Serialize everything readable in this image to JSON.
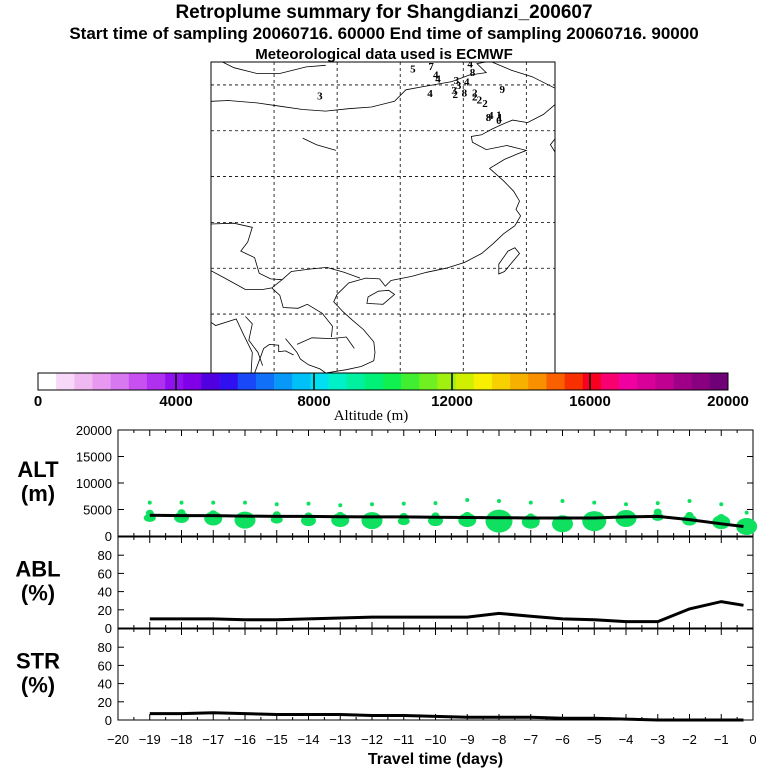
{
  "header": {
    "title": "Retroplume summary for Shangdianzi_200607",
    "subtitle": "Start time of sampling 20060716. 60000     End time of sampling 20060716. 90000",
    "met_note": "Meteorological data used is ECMWF"
  },
  "colorbar": {
    "colors": [
      "#ffffff",
      "#f8d8f8",
      "#f0b8f0",
      "#e898f0",
      "#d878f0",
      "#c850f0",
      "#b030f0",
      "#9010f0",
      "#8000e8",
      "#5000e0",
      "#3010f0",
      "#1848f8",
      "#1070f8",
      "#0898f8",
      "#00c0f8",
      "#00e0f0",
      "#00f0c8",
      "#00f0a0",
      "#00f078",
      "#10f050",
      "#40f030",
      "#70f020",
      "#a0f010",
      "#d0f000",
      "#f8f000",
      "#f8d000",
      "#f8b000",
      "#f89000",
      "#f86000",
      "#f83000",
      "#f80020",
      "#f80070",
      "#f000a0",
      "#d80098",
      "#c00090",
      "#a00088",
      "#880080",
      "#700078"
    ],
    "tick_labels": [
      "0",
      "4000",
      "8000",
      "12000",
      "16000",
      "20000"
    ],
    "label": "Altitude (m)"
  },
  "map": {
    "plume_labels": [
      {
        "text": "5",
        "lon": 112.6,
        "lat": 47.2,
        "color": "#e898f0"
      },
      {
        "text": "7",
        "lon": 114.2,
        "lat": 47.5,
        "color": "#8000e8"
      },
      {
        "text": "4",
        "lon": 117.6,
        "lat": 47.8,
        "color": "#3010f0"
      },
      {
        "text": "8",
        "lon": 117.8,
        "lat": 46.8,
        "color": "#3010f0"
      },
      {
        "text": "4",
        "lon": 114.6,
        "lat": 46.5,
        "color": "#9010f0"
      },
      {
        "text": "4",
        "lon": 114.8,
        "lat": 46.0,
        "color": "#9010f0"
      },
      {
        "text": "3",
        "lon": 116.4,
        "lat": 45.8,
        "color": "#b030f0"
      },
      {
        "text": "3",
        "lon": 116.6,
        "lat": 45.2,
        "color": "#b030f0"
      },
      {
        "text": "4",
        "lon": 117.3,
        "lat": 45.6,
        "color": "#5000e0"
      },
      {
        "text": "3",
        "lon": 116.2,
        "lat": 44.6,
        "color": "#9010f0"
      },
      {
        "text": "2",
        "lon": 116.3,
        "lat": 44.1,
        "color": "#0898f8"
      },
      {
        "text": "4",
        "lon": 114.1,
        "lat": 44.2,
        "color": "#3010f0"
      },
      {
        "text": "8",
        "lon": 117.1,
        "lat": 44.3,
        "color": "#3010f0"
      },
      {
        "text": "2",
        "lon": 118.0,
        "lat": 44.3,
        "color": "#8000e8"
      },
      {
        "text": "9",
        "lon": 120.4,
        "lat": 44.7,
        "color": "#8000e8"
      },
      {
        "text": "2",
        "lon": 118.0,
        "lat": 43.8,
        "color": "#8000e8"
      },
      {
        "text": "2",
        "lon": 118.4,
        "lat": 43.4,
        "color": "#9010f0"
      },
      {
        "text": "2",
        "lon": 118.9,
        "lat": 43.0,
        "color": "#9010f0"
      },
      {
        "text": "3",
        "lon": 104.5,
        "lat": 43.9,
        "color": "#000000"
      },
      {
        "text": "1",
        "lon": 120.1,
        "lat": 41.6,
        "color": "#b030f0"
      },
      {
        "text": "1",
        "lon": 120.2,
        "lat": 41.3,
        "color": "#b030f0"
      },
      {
        "text": "0",
        "lon": 120.1,
        "lat": 40.9,
        "color": "#e898f0"
      },
      {
        "text": "4",
        "lon": 119.4,
        "lat": 41.5,
        "color": "#3010f0"
      },
      {
        "text": "8",
        "lon": 119.2,
        "lat": 41.3,
        "color": "#3010f0"
      }
    ]
  },
  "chart_data": [
    {
      "type": "scatter",
      "panel": "ALT",
      "ylabel": "ALT\n(m)",
      "ylim": [
        0,
        20000
      ],
      "yticks": [
        0,
        5000,
        10000,
        15000,
        20000
      ],
      "mean_line": {
        "x": [
          -19.0,
          -18.0,
          -17.0,
          -16.0,
          -15.0,
          -14.0,
          -13.0,
          -12.0,
          -11.0,
          -10.0,
          -9.0,
          -8.0,
          -7.0,
          -6.0,
          -5.0,
          -4.0,
          -3.0,
          -2.0,
          -1.0,
          -0.3
        ],
        "y": [
          3900,
          3850,
          3850,
          3750,
          3700,
          3700,
          3650,
          3600,
          3600,
          3550,
          3500,
          3450,
          3400,
          3400,
          3400,
          3600,
          3700,
          3100,
          2300,
          1800
        ]
      },
      "clusters": {
        "x": [
          -19.0,
          -18.0,
          -17.0,
          -16.0,
          -15.0,
          -14.0,
          -13.0,
          -12.0,
          -11.0,
          -10.0,
          -9.0,
          -8.0,
          -7.0,
          -6.0,
          -5.0,
          -4.0,
          -3.0,
          -2.0,
          -1.0,
          -0.2
        ],
        "y": [
          3400,
          3500,
          3300,
          3000,
          3100,
          2900,
          3000,
          2900,
          2800,
          2900,
          3000,
          2800,
          2700,
          2300,
          2800,
          3300,
          3600,
          3000,
          2600,
          1800
        ],
        "top": [
          6300,
          6300,
          6300,
          6300,
          6000,
          6100,
          5800,
          6000,
          6100,
          6200,
          6800,
          6600,
          6300,
          6600,
          6300,
          6000,
          6200,
          6600,
          6000,
          4400
        ]
      }
    },
    {
      "type": "line",
      "panel": "ABL",
      "ylabel": "ABL\n(%)",
      "ylim": [
        0,
        100
      ],
      "yticks": [
        0,
        20,
        40,
        60,
        80
      ],
      "x": [
        -19.0,
        -18.0,
        -17.0,
        -16.0,
        -15.0,
        -14.0,
        -13.0,
        -12.0,
        -11.0,
        -10.0,
        -9.0,
        -8.0,
        -7.0,
        -6.0,
        -5.0,
        -4.0,
        -3.0,
        -2.0,
        -1.0,
        -0.3
      ],
      "values": [
        10,
        10,
        10,
        9,
        9,
        10,
        11,
        12,
        12,
        12,
        12,
        16,
        13,
        10,
        9,
        7,
        7,
        21,
        29,
        25
      ]
    },
    {
      "type": "line",
      "panel": "STR",
      "ylabel": "STR\n(%)",
      "ylim": [
        0,
        100
      ],
      "yticks": [
        0,
        20,
        40,
        60,
        80
      ],
      "xlabel": "Travel time (days)",
      "xlim": [
        -20,
        0
      ],
      "xticks": [
        -20,
        -19,
        -18,
        -17,
        -16,
        -15,
        -14,
        -13,
        -12,
        -11,
        -10,
        -9,
        -8,
        -7,
        -6,
        -5,
        -4,
        -3,
        -2,
        -1,
        0
      ],
      "x": [
        -19.0,
        -18.0,
        -17.0,
        -16.0,
        -15.0,
        -14.0,
        -13.0,
        -12.0,
        -11.0,
        -10.0,
        -9.0,
        -8.0,
        -7.0,
        -6.0,
        -5.0,
        -4.0,
        -3.0,
        -2.0,
        -1.0,
        -0.3
      ],
      "values": [
        7,
        7,
        8,
        7,
        6,
        6,
        6,
        5,
        5,
        4,
        3,
        3,
        3,
        2,
        2,
        1,
        0,
        0,
        0,
        0
      ]
    }
  ]
}
